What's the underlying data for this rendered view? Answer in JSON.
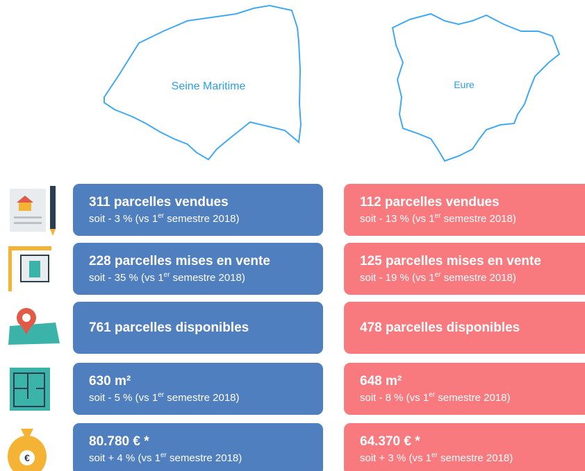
{
  "maps": [
    {
      "label": "Seine Maritime"
    },
    {
      "label": "Eure"
    }
  ],
  "rows": [
    {
      "left": {
        "title": "311 parcelles vendues",
        "subtitle": {
          "before": "soit - 3 % (vs 1",
          "sup": "er",
          "after": " semestre 2018)"
        }
      },
      "right": {
        "title": "112 parcelles vendues",
        "subtitle": {
          "before": "soit - 13 % (vs 1",
          "sup": "er",
          "after": " semestre 2018)"
        }
      }
    },
    {
      "left": {
        "title": "228 parcelles mises en vente",
        "subtitle": {
          "before": "soit - 35 % (vs 1",
          "sup": "er",
          "after": " semestre 2018)"
        }
      },
      "right": {
        "title": "125 parcelles mises en vente",
        "subtitle": {
          "before": "soit - 19 % (vs 1",
          "sup": "er",
          "after": " semestre 2018)"
        }
      }
    },
    {
      "left": {
        "title": "761 parcelles disponibles"
      },
      "right": {
        "title": "478 parcelles disponibles"
      }
    },
    {
      "left": {
        "title": "630 m²",
        "subtitle": {
          "before": "soit - 5 % (vs 1",
          "sup": "er",
          "after": " semestre 2018)"
        }
      },
      "right": {
        "title": "648 m²",
        "subtitle": {
          "before": "soit - 8 % (vs 1",
          "sup": "er",
          "after": " semestre 2018)"
        }
      }
    },
    {
      "left": {
        "title": "80.780 € *",
        "subtitle": {
          "before": "soit + 4 % (vs 1",
          "sup": "er",
          "after": " semestre 2018)"
        }
      },
      "right": {
        "title": "64.370 € *",
        "subtitle": {
          "before": "soit + 3 % (vs 1",
          "sup": "er",
          "after": " semestre 2018)"
        }
      }
    }
  ]
}
